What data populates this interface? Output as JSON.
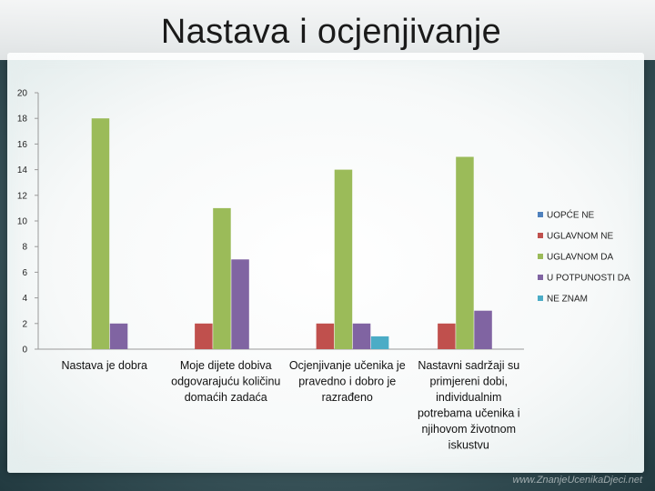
{
  "title": "Nastava i ocjenjivanje",
  "watermark": "www.ZnanjeUcenikaDjeci.net",
  "colors": {
    "UOPĆE NE": "#4f81bd",
    "UGLAVNOM NE": "#c0504d",
    "UGLAVNOM DA": "#9bbb59",
    "U POTPUNOSTI DA": "#8064a2",
    "NE ZNAM": "#4bacc6"
  },
  "chart_data": {
    "type": "bar",
    "title": "Nastava i ocjenjivanje",
    "xlabel": "",
    "ylabel": "",
    "ylim": [
      0,
      20
    ],
    "yticks": [
      0,
      2,
      4,
      6,
      8,
      10,
      12,
      14,
      16,
      18,
      20
    ],
    "grid": false,
    "legend_position": "right",
    "categories": [
      "Nastava je dobra",
      "Moje dijete dobiva odgovarajuću količinu domaćih zadaća",
      "Ocjenjivanje učenika je pravedno i dobro je razrađeno",
      "Nastavni sadržaji su primjereni dobi, individualnim potrebama učenika i njihovom životnom iskustvu"
    ],
    "category_lines": [
      [
        "Nastava je dobra"
      ],
      [
        "Moje dijete dobiva",
        "odgovarajuću količinu",
        "domaćih zadaća"
      ],
      [
        "Ocjenjivanje učenika je",
        "pravedno i dobro je",
        "razrađeno"
      ],
      [
        "Nastavni sadržaji su",
        "primjereni dobi,",
        "individualnim",
        "potrebama učenika i",
        "njihovom životnom",
        "iskustvu"
      ]
    ],
    "series": [
      {
        "name": "UOPĆE NE",
        "values": [
          0,
          0,
          0,
          0
        ]
      },
      {
        "name": "UGLAVNOM NE",
        "values": [
          0,
          2,
          2,
          2
        ]
      },
      {
        "name": "UGLAVNOM DA",
        "values": [
          18,
          11,
          14,
          15
        ]
      },
      {
        "name": "U POTPUNOSTI DA",
        "values": [
          2,
          7,
          2,
          3
        ]
      },
      {
        "name": "NE ZNAM",
        "values": [
          0,
          0,
          1,
          0
        ]
      }
    ]
  }
}
